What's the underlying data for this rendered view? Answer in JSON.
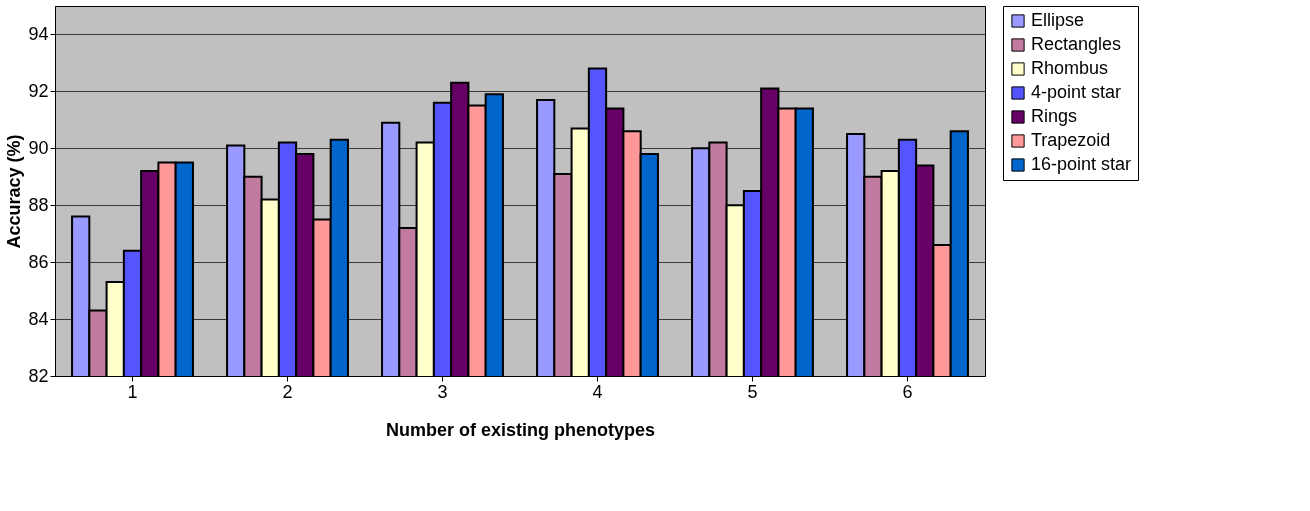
{
  "chart_data": {
    "type": "bar",
    "xlabel": "Number of existing phenotypes",
    "ylabel": "Accuracy (%)",
    "categories": [
      "1",
      "2",
      "3",
      "4",
      "5",
      "6"
    ],
    "ylim": [
      82,
      95
    ],
    "yticks": [
      82,
      84,
      86,
      88,
      90,
      92,
      94
    ],
    "grid": "y",
    "legend": "right",
    "series": [
      {
        "name": "Ellipse",
        "color": "#9999ff",
        "values": [
          87.6,
          90.1,
          90.9,
          91.7,
          90.0,
          90.5
        ]
      },
      {
        "name": "Rectangles",
        "color": "#c27ba0",
        "values": [
          84.3,
          89.0,
          87.2,
          89.1,
          90.2,
          89.0
        ]
      },
      {
        "name": "Rhombus",
        "color": "#ffffcc",
        "values": [
          85.3,
          88.2,
          90.2,
          90.7,
          88.0,
          89.2
        ]
      },
      {
        "name": "4-point star",
        "color": "#5555ff",
        "values": [
          86.4,
          90.2,
          91.6,
          92.8,
          88.5,
          90.3
        ]
      },
      {
        "name": "Rings",
        "color": "#660066",
        "values": [
          89.2,
          89.8,
          92.3,
          91.4,
          92.1,
          89.4
        ]
      },
      {
        "name": "Trapezoid",
        "color": "#ff9999",
        "values": [
          89.5,
          87.5,
          91.5,
          90.6,
          91.4,
          86.6
        ]
      },
      {
        "name": "16-point star",
        "color": "#0066cc",
        "values": [
          89.5,
          90.3,
          91.9,
          89.8,
          91.4,
          90.6
        ]
      }
    ]
  }
}
